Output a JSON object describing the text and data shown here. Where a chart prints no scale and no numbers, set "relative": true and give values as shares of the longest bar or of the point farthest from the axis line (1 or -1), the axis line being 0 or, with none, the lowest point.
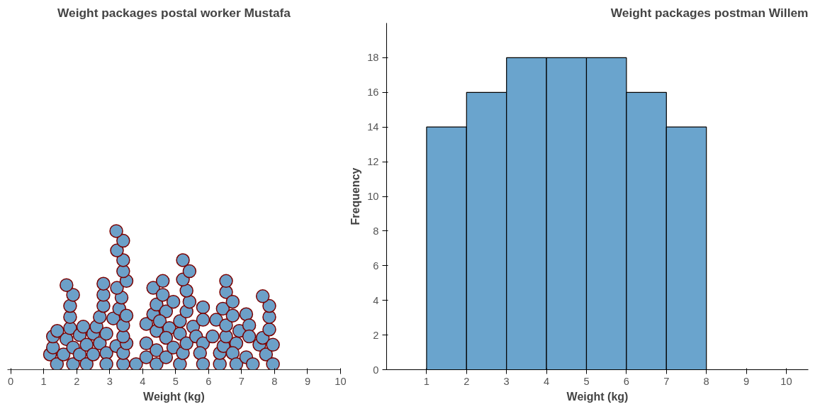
{
  "chart_data": [
    {
      "type": "scatter",
      "title": "Weight packages postal worker Mustafa",
      "xlabel": "Weight (kg)",
      "relative": true,
      "tick_labels": "x",
      "marker": "circle",
      "grid": false,
      "xlim": [
        -0.1,
        10
      ],
      "xticks": [
        0,
        1,
        2,
        3,
        4,
        5,
        6,
        7,
        8,
        9,
        10
      ],
      "series": [
        {
          "color": "#6ca0c8",
          "x": [
            1.19,
            1.4,
            1.28,
            1.28,
            1.41,
            1.6,
            1.69,
            1.89,
            1.89,
            1.8,
            1.8,
            1.8,
            1.89,
            1.69,
            2.09,
            2.09,
            2.2,
            2.3,
            2.3,
            2.5,
            2.5,
            2.6,
            2.7,
            2.7,
            2.9,
            2.9,
            2.9,
            2.81,
            2.81,
            2.81,
            3.2,
            3.11,
            3.29,
            3.36,
            3.22,
            3.51,
            3.41,
            3.41,
            3.22,
            3.41,
            3.2,
            3.41,
            3.41,
            3.51,
            3.41,
            3.41,
            3.51,
            3.8,
            4.11,
            4.11,
            4.11,
            4.42,
            4.42,
            4.71,
            4.42,
            4.32,
            4.42,
            4.32,
            4.61,
            4.61,
            4.71,
            4.52,
            4.81,
            4.71,
            4.93,
            4.93,
            5.13,
            5.22,
            5.13,
            5.13,
            5.33,
            5.33,
            5.42,
            5.33,
            5.22,
            5.42,
            5.22,
            5.53,
            5.62,
            5.83,
            5.83,
            5.83,
            5.74,
            5.83,
            6.12,
            6.23,
            6.34,
            6.34,
            6.45,
            6.53,
            6.53,
            6.43,
            6.53,
            6.53,
            6.73,
            6.73,
            6.84,
            6.73,
            6.84,
            6.93,
            7.14,
            7.23,
            7.23,
            7.14,
            7.34,
            7.54,
            7.64,
            7.74,
            7.95,
            7.95,
            7.84,
            7.84,
            7.84,
            7.64
          ],
          "values": [
            0.11,
            0.04,
            0.16,
            0.24,
            0.28,
            0.11,
            0.22,
            0.04,
            0.16,
            0.3,
            0.38,
            0.46,
            0.54,
            0.61,
            0.11,
            0.25,
            0.31,
            0.04,
            0.18,
            0.11,
            0.26,
            0.31,
            0.38,
            0.19,
            0.12,
            0.04,
            0.26,
            0.46,
            0.54,
            0.62,
            0.17,
            0.37,
            0.44,
            0.52,
            0.59,
            0.64,
            0.71,
            0.79,
            0.86,
            0.93,
            1.0,
            0.04,
            0.12,
            0.19,
            0.24,
            0.32,
            0.39,
            0.04,
            0.09,
            0.19,
            0.33,
            0.04,
            0.14,
            0.09,
            0.28,
            0.4,
            0.47,
            0.59,
            0.64,
            0.54,
            0.42,
            0.35,
            0.3,
            0.23,
            0.49,
            0.16,
            0.04,
            0.12,
            0.26,
            0.35,
            0.19,
            0.42,
            0.49,
            0.57,
            0.65,
            0.71,
            0.79,
            0.31,
            0.24,
            0.45,
            0.36,
            0.19,
            0.12,
            0.04,
            0.24,
            0.36,
            0.04,
            0.12,
            0.17,
            0.24,
            0.32,
            0.44,
            0.56,
            0.64,
            0.49,
            0.39,
            0.19,
            0.12,
            0.04,
            0.28,
            0.4,
            0.32,
            0.24,
            0.09,
            0.04,
            0.18,
            0.23,
            0.11,
            0.04,
            0.18,
            0.29,
            0.38,
            0.46,
            0.53
          ]
        }
      ]
    },
    {
      "type": "histogram",
      "title": "Weight packages postman Willem",
      "xlabel": "Weight (kg)",
      "ylabel": "Frequency",
      "grid": false,
      "bins": [
        1,
        2,
        3,
        4,
        5,
        6,
        7,
        8
      ],
      "values": [
        14,
        16,
        18,
        18,
        18,
        16,
        14
      ],
      "color": "#6aa4cd",
      "xlim": [
        0,
        10.55
      ],
      "xticks": [
        1,
        2,
        3,
        4,
        5,
        6,
        7,
        8,
        9,
        10
      ],
      "ylim": [
        0,
        20
      ],
      "yticks": [
        0,
        2,
        4,
        6,
        8,
        10,
        12,
        14,
        16,
        18
      ]
    }
  ]
}
